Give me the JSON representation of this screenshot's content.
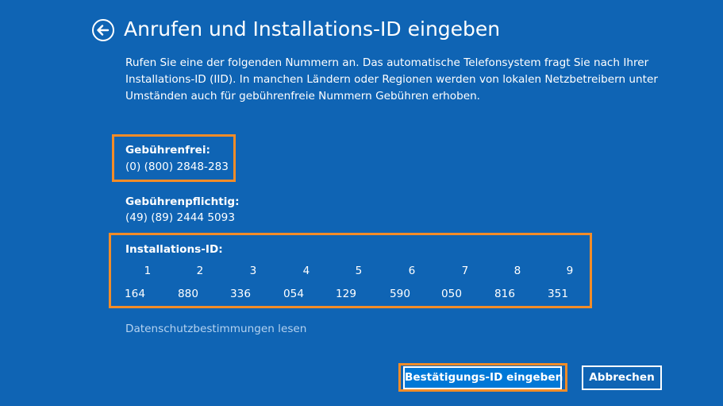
{
  "header": {
    "title": "Anrufen und Installations-ID eingeben",
    "back_icon": "back-arrow-circle-icon"
  },
  "intro_lines": [
    "Rufen Sie eine der folgenden Nummern an. Das automatische Telefonsystem fragt Sie nach Ihrer",
    "Installations-ID (IID). In manchen Ländern oder Regionen werden von lokalen Netzbetreibern unter",
    "Umständen auch für gebührenfreie Nummern Gebühren erhoben."
  ],
  "toll_free": {
    "label": "Gebührenfrei:",
    "number": "(0) (800) 2848-283"
  },
  "toll": {
    "label": "Gebührenpflichtig:",
    "number": "(49) (89) 2444 5093"
  },
  "installation_id": {
    "label": "Installations-ID:",
    "columns": [
      "1",
      "2",
      "3",
      "4",
      "5",
      "6",
      "7",
      "8",
      "9"
    ],
    "groups": [
      "164",
      "880",
      "336",
      "054",
      "129",
      "590",
      "050",
      "816",
      "351"
    ]
  },
  "privacy_link": "Datenschutzbestimmungen lesen",
  "buttons": {
    "confirm": "Bestätigungs-ID eingeben",
    "cancel": "Abbrechen"
  },
  "colors": {
    "background": "#0f64b4",
    "highlight": "#f28c28",
    "button_primary": "#0078d7",
    "link": "#b4d2f0"
  }
}
